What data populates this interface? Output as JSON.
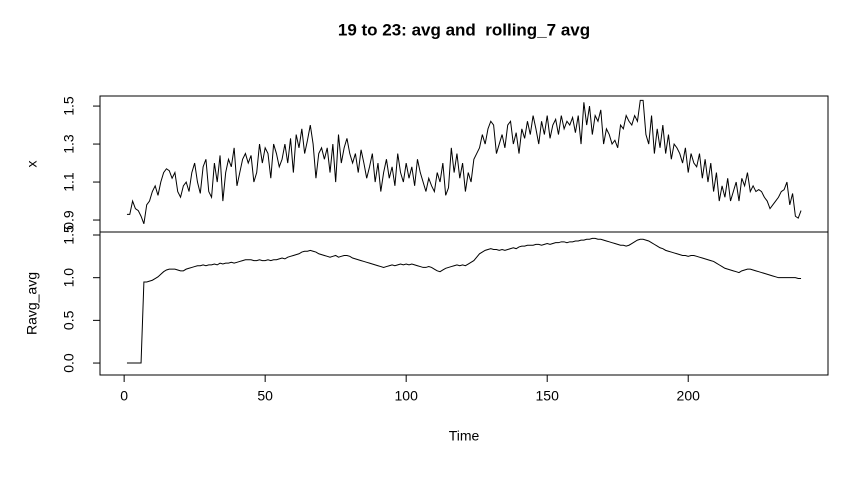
{
  "chart_data": {
    "type": "line",
    "title": "19 to 23: avg and  rolling_7 avg",
    "xlabel": "Time",
    "color": "#000000",
    "xlim": [
      -8.56,
      249.56
    ],
    "xticks": [
      0,
      50,
      100,
      150,
      200
    ],
    "x": [
      1,
      2,
      3,
      4,
      5,
      6,
      7,
      8,
      9,
      10,
      11,
      12,
      13,
      14,
      15,
      16,
      17,
      18,
      19,
      20,
      21,
      22,
      23,
      24,
      25,
      26,
      27,
      28,
      29,
      30,
      31,
      32,
      33,
      34,
      35,
      36,
      37,
      38,
      39,
      40,
      41,
      42,
      43,
      44,
      45,
      46,
      47,
      48,
      49,
      50,
      51,
      52,
      53,
      54,
      55,
      56,
      57,
      58,
      59,
      60,
      61,
      62,
      63,
      64,
      65,
      66,
      67,
      68,
      69,
      70,
      71,
      72,
      73,
      74,
      75,
      76,
      77,
      78,
      79,
      80,
      81,
      82,
      83,
      84,
      85,
      86,
      87,
      88,
      89,
      90,
      91,
      92,
      93,
      94,
      95,
      96,
      97,
      98,
      99,
      100,
      101,
      102,
      103,
      104,
      105,
      106,
      107,
      108,
      109,
      110,
      111,
      112,
      113,
      114,
      115,
      116,
      117,
      118,
      119,
      120,
      121,
      122,
      123,
      124,
      125,
      126,
      127,
      128,
      129,
      130,
      131,
      132,
      133,
      134,
      135,
      136,
      137,
      138,
      139,
      140,
      141,
      142,
      143,
      144,
      145,
      146,
      147,
      148,
      149,
      150,
      151,
      152,
      153,
      154,
      155,
      156,
      157,
      158,
      159,
      160,
      161,
      162,
      163,
      164,
      165,
      166,
      167,
      168,
      169,
      170,
      171,
      172,
      173,
      174,
      175,
      176,
      177,
      178,
      179,
      180,
      181,
      182,
      183,
      184,
      185,
      186,
      187,
      188,
      189,
      190,
      191,
      192,
      193,
      194,
      195,
      196,
      197,
      198,
      199,
      200,
      201,
      202,
      203,
      204,
      205,
      206,
      207,
      208,
      209,
      210,
      211,
      212,
      213,
      214,
      215,
      216,
      217,
      218,
      219,
      220,
      221,
      222,
      223,
      224,
      225,
      226,
      227,
      228,
      229,
      230,
      231,
      232,
      233,
      234,
      235,
      236,
      237,
      238,
      239,
      240
    ],
    "panels": [
      {
        "ylabel": "x",
        "ylim": [
          0.837,
          1.553
        ],
        "yticks": [
          0.9,
          1.1,
          1.3,
          1.5
        ],
        "values": [
          0.93,
          0.93,
          1.0,
          0.96,
          0.95,
          0.92,
          0.88,
          0.98,
          1.0,
          1.05,
          1.08,
          1.03,
          1.1,
          1.15,
          1.17,
          1.16,
          1.12,
          1.15,
          1.05,
          1.02,
          1.08,
          1.1,
          1.05,
          1.15,
          1.2,
          1.1,
          1.04,
          1.18,
          1.22,
          1.05,
          1.02,
          1.2,
          1.1,
          1.24,
          1.0,
          1.15,
          1.22,
          1.18,
          1.28,
          1.08,
          1.15,
          1.22,
          1.25,
          1.2,
          1.24,
          1.1,
          1.15,
          1.3,
          1.2,
          1.28,
          1.25,
          1.12,
          1.3,
          1.25,
          1.18,
          1.22,
          1.3,
          1.2,
          1.33,
          1.15,
          1.35,
          1.28,
          1.38,
          1.25,
          1.32,
          1.4,
          1.3,
          1.12,
          1.25,
          1.28,
          1.22,
          1.28,
          1.15,
          1.3,
          1.1,
          1.35,
          1.2,
          1.28,
          1.33,
          1.25,
          1.2,
          1.25,
          1.15,
          1.27,
          1.2,
          1.12,
          1.18,
          1.25,
          1.1,
          1.2,
          1.05,
          1.15,
          1.22,
          1.12,
          1.18,
          1.08,
          1.25,
          1.15,
          1.1,
          1.2,
          1.12,
          1.18,
          1.08,
          1.22,
          1.15,
          1.1,
          1.05,
          1.12,
          1.08,
          1.05,
          1.15,
          1.1,
          1.2,
          1.03,
          1.07,
          1.28,
          1.15,
          1.25,
          1.12,
          1.2,
          1.05,
          1.15,
          1.1,
          1.22,
          1.25,
          1.28,
          1.35,
          1.3,
          1.38,
          1.42,
          1.4,
          1.25,
          1.3,
          1.35,
          1.28,
          1.4,
          1.42,
          1.3,
          1.36,
          1.25,
          1.38,
          1.33,
          1.42,
          1.35,
          1.45,
          1.38,
          1.3,
          1.42,
          1.35,
          1.45,
          1.33,
          1.4,
          1.43,
          1.35,
          1.45,
          1.38,
          1.42,
          1.4,
          1.44,
          1.36,
          1.45,
          1.3,
          1.52,
          1.4,
          1.5,
          1.35,
          1.45,
          1.42,
          1.48,
          1.3,
          1.38,
          1.35,
          1.3,
          1.32,
          1.28,
          1.4,
          1.38,
          1.45,
          1.42,
          1.4,
          1.45,
          1.42,
          1.53,
          1.53,
          1.35,
          1.3,
          1.45,
          1.25,
          1.38,
          1.28,
          1.4,
          1.25,
          1.35,
          1.22,
          1.3,
          1.28,
          1.25,
          1.2,
          1.28,
          1.15,
          1.25,
          1.2,
          1.18,
          1.25,
          1.12,
          1.22,
          1.1,
          1.2,
          1.05,
          1.15,
          1.0,
          1.08,
          1.02,
          1.12,
          1.0,
          1.05,
          1.1,
          1.0,
          1.12,
          1.08,
          1.15,
          1.05,
          1.08,
          1.05,
          1.06,
          1.05,
          1.02,
          1.0,
          0.96,
          0.98,
          1.0,
          1.02,
          1.05,
          1.06,
          1.1,
          0.98,
          1.04,
          0.92,
          0.91,
          0.95
        ]
      },
      {
        "ylabel": "Ravg_avg",
        "ylim": [
          -0.14,
          1.535
        ],
        "yticks": [
          {
            "value": 0,
            "label": "0.0"
          },
          0.5,
          {
            "value": 1,
            "label": "1.0"
          },
          1.5
        ],
        "values": [
          0,
          0,
          0,
          0,
          0,
          0,
          0.95,
          0.95,
          0.96,
          0.97,
          0.99,
          1.01,
          1.04,
          1.07,
          1.09,
          1.1,
          1.1,
          1.1,
          1.09,
          1.08,
          1.08,
          1.1,
          1.11,
          1.12,
          1.13,
          1.14,
          1.14,
          1.15,
          1.14,
          1.15,
          1.15,
          1.16,
          1.15,
          1.17,
          1.16,
          1.17,
          1.17,
          1.18,
          1.17,
          1.18,
          1.19,
          1.2,
          1.21,
          1.21,
          1.21,
          1.2,
          1.2,
          1.21,
          1.2,
          1.2,
          1.21,
          1.2,
          1.21,
          1.21,
          1.22,
          1.23,
          1.22,
          1.24,
          1.25,
          1.26,
          1.27,
          1.28,
          1.3,
          1.31,
          1.31,
          1.32,
          1.31,
          1.3,
          1.28,
          1.27,
          1.26,
          1.25,
          1.24,
          1.25,
          1.26,
          1.24,
          1.25,
          1.26,
          1.26,
          1.25,
          1.23,
          1.22,
          1.21,
          1.2,
          1.19,
          1.18,
          1.17,
          1.16,
          1.15,
          1.14,
          1.13,
          1.12,
          1.13,
          1.14,
          1.15,
          1.14,
          1.15,
          1.16,
          1.15,
          1.16,
          1.15,
          1.16,
          1.15,
          1.14,
          1.13,
          1.12,
          1.12,
          1.13,
          1.12,
          1.1,
          1.08,
          1.07,
          1.09,
          1.11,
          1.12,
          1.13,
          1.14,
          1.15,
          1.14,
          1.15,
          1.14,
          1.16,
          1.18,
          1.2,
          1.24,
          1.28,
          1.3,
          1.32,
          1.33,
          1.34,
          1.33,
          1.33,
          1.32,
          1.33,
          1.32,
          1.33,
          1.34,
          1.35,
          1.34,
          1.36,
          1.37,
          1.37,
          1.38,
          1.38,
          1.38,
          1.39,
          1.39,
          1.38,
          1.39,
          1.4,
          1.39,
          1.4,
          1.41,
          1.41,
          1.42,
          1.42,
          1.41,
          1.42,
          1.42,
          1.43,
          1.43,
          1.44,
          1.44,
          1.45,
          1.45,
          1.46,
          1.46,
          1.45,
          1.45,
          1.44,
          1.43,
          1.42,
          1.41,
          1.4,
          1.39,
          1.38,
          1.38,
          1.37,
          1.38,
          1.4,
          1.42,
          1.44,
          1.45,
          1.45,
          1.44,
          1.43,
          1.41,
          1.39,
          1.37,
          1.35,
          1.34,
          1.32,
          1.31,
          1.3,
          1.29,
          1.28,
          1.27,
          1.26,
          1.26,
          1.25,
          1.26,
          1.26,
          1.25,
          1.24,
          1.23,
          1.22,
          1.21,
          1.2,
          1.19,
          1.17,
          1.15,
          1.13,
          1.11,
          1.1,
          1.09,
          1.08,
          1.07,
          1.06,
          1.08,
          1.09,
          1.1,
          1.1,
          1.09,
          1.08,
          1.07,
          1.06,
          1.05,
          1.04,
          1.03,
          1.02,
          1.01,
          1.0,
          1.0,
          1.0,
          1.0,
          1.0,
          1.0,
          1.0,
          0.99,
          0.99
        ]
      }
    ]
  }
}
